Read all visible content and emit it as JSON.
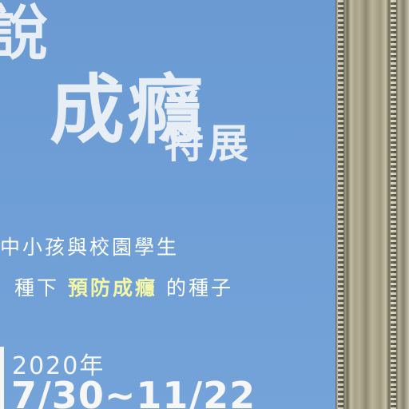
{
  "poster": {
    "title_line1": "說",
    "title_line2": "成癮",
    "title_line3": "特展",
    "tagline_line1": "中小孩與校園學生",
    "tagline_line2_prefix": "種下",
    "tagline_line2_highlight": "預防成癮",
    "tagline_line2_suffix": "的種子",
    "year": "2020年",
    "dates": "7/30~11/22"
  },
  "colors": {
    "poster_background": "#6f9fd6",
    "highlight_text": "#f2f6a6",
    "title_text": "#e8eef6"
  }
}
